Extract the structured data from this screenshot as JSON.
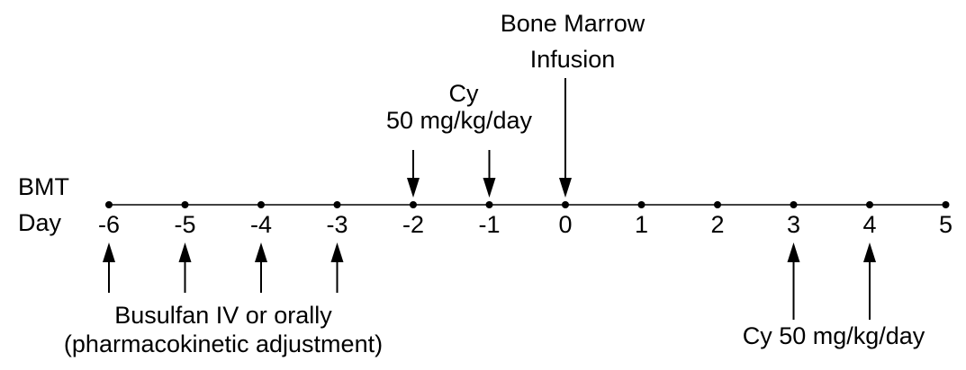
{
  "axis_label": [
    "BMT",
    "Day"
  ],
  "days": [
    -6,
    -5,
    -4,
    -3,
    -2,
    -1,
    0,
    1,
    2,
    3,
    4,
    5
  ],
  "annotations": [
    {
      "lines": [
        "Busulfan IV or orally",
        "(pharmacokinetic adjustment)"
      ],
      "days": [
        -6,
        -5,
        -4,
        -3
      ]
    },
    {
      "lines": [
        "Cy",
        "50 mg/kg/day"
      ],
      "days": [
        -2,
        -1
      ]
    },
    {
      "lines": [
        "Bone Marrow",
        "Infusion"
      ],
      "days": [
        0
      ]
    },
    {
      "lines": [
        "Cy 50 mg/kg/day"
      ],
      "days": [
        3,
        4
      ]
    }
  ]
}
